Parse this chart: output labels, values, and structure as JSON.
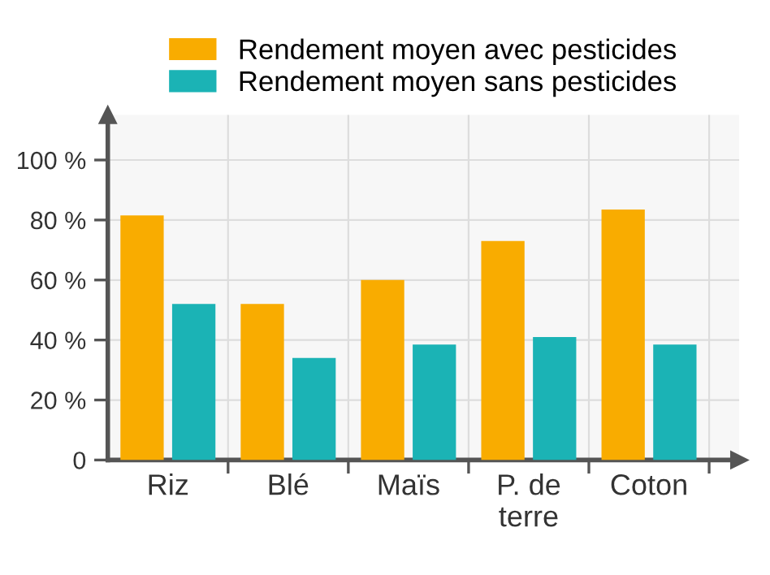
{
  "chart_data": {
    "type": "bar",
    "categories": [
      "Riz",
      "Blé",
      "Maïs",
      "P. de\nterre",
      "Coton"
    ],
    "series": [
      {
        "name": "Rendement moyen avec pesticides",
        "color": "#f9ac00",
        "values": [
          81.5,
          52,
          60,
          73,
          83.5
        ]
      },
      {
        "name": "Rendement moyen sans pesticides",
        "color": "#1bb3b5",
        "values": [
          52,
          34,
          38.5,
          41,
          38.5
        ]
      }
    ],
    "ylim": [
      0,
      115
    ],
    "yticks": [
      {
        "value": 0,
        "label": "0"
      },
      {
        "value": 20,
        "label": "20 %"
      },
      {
        "value": 40,
        "label": "40 %"
      },
      {
        "value": 60,
        "label": "60 %"
      },
      {
        "value": 80,
        "label": "80 %"
      },
      {
        "value": 100,
        "label": "100 %"
      }
    ],
    "grid": true,
    "legend": "top"
  }
}
